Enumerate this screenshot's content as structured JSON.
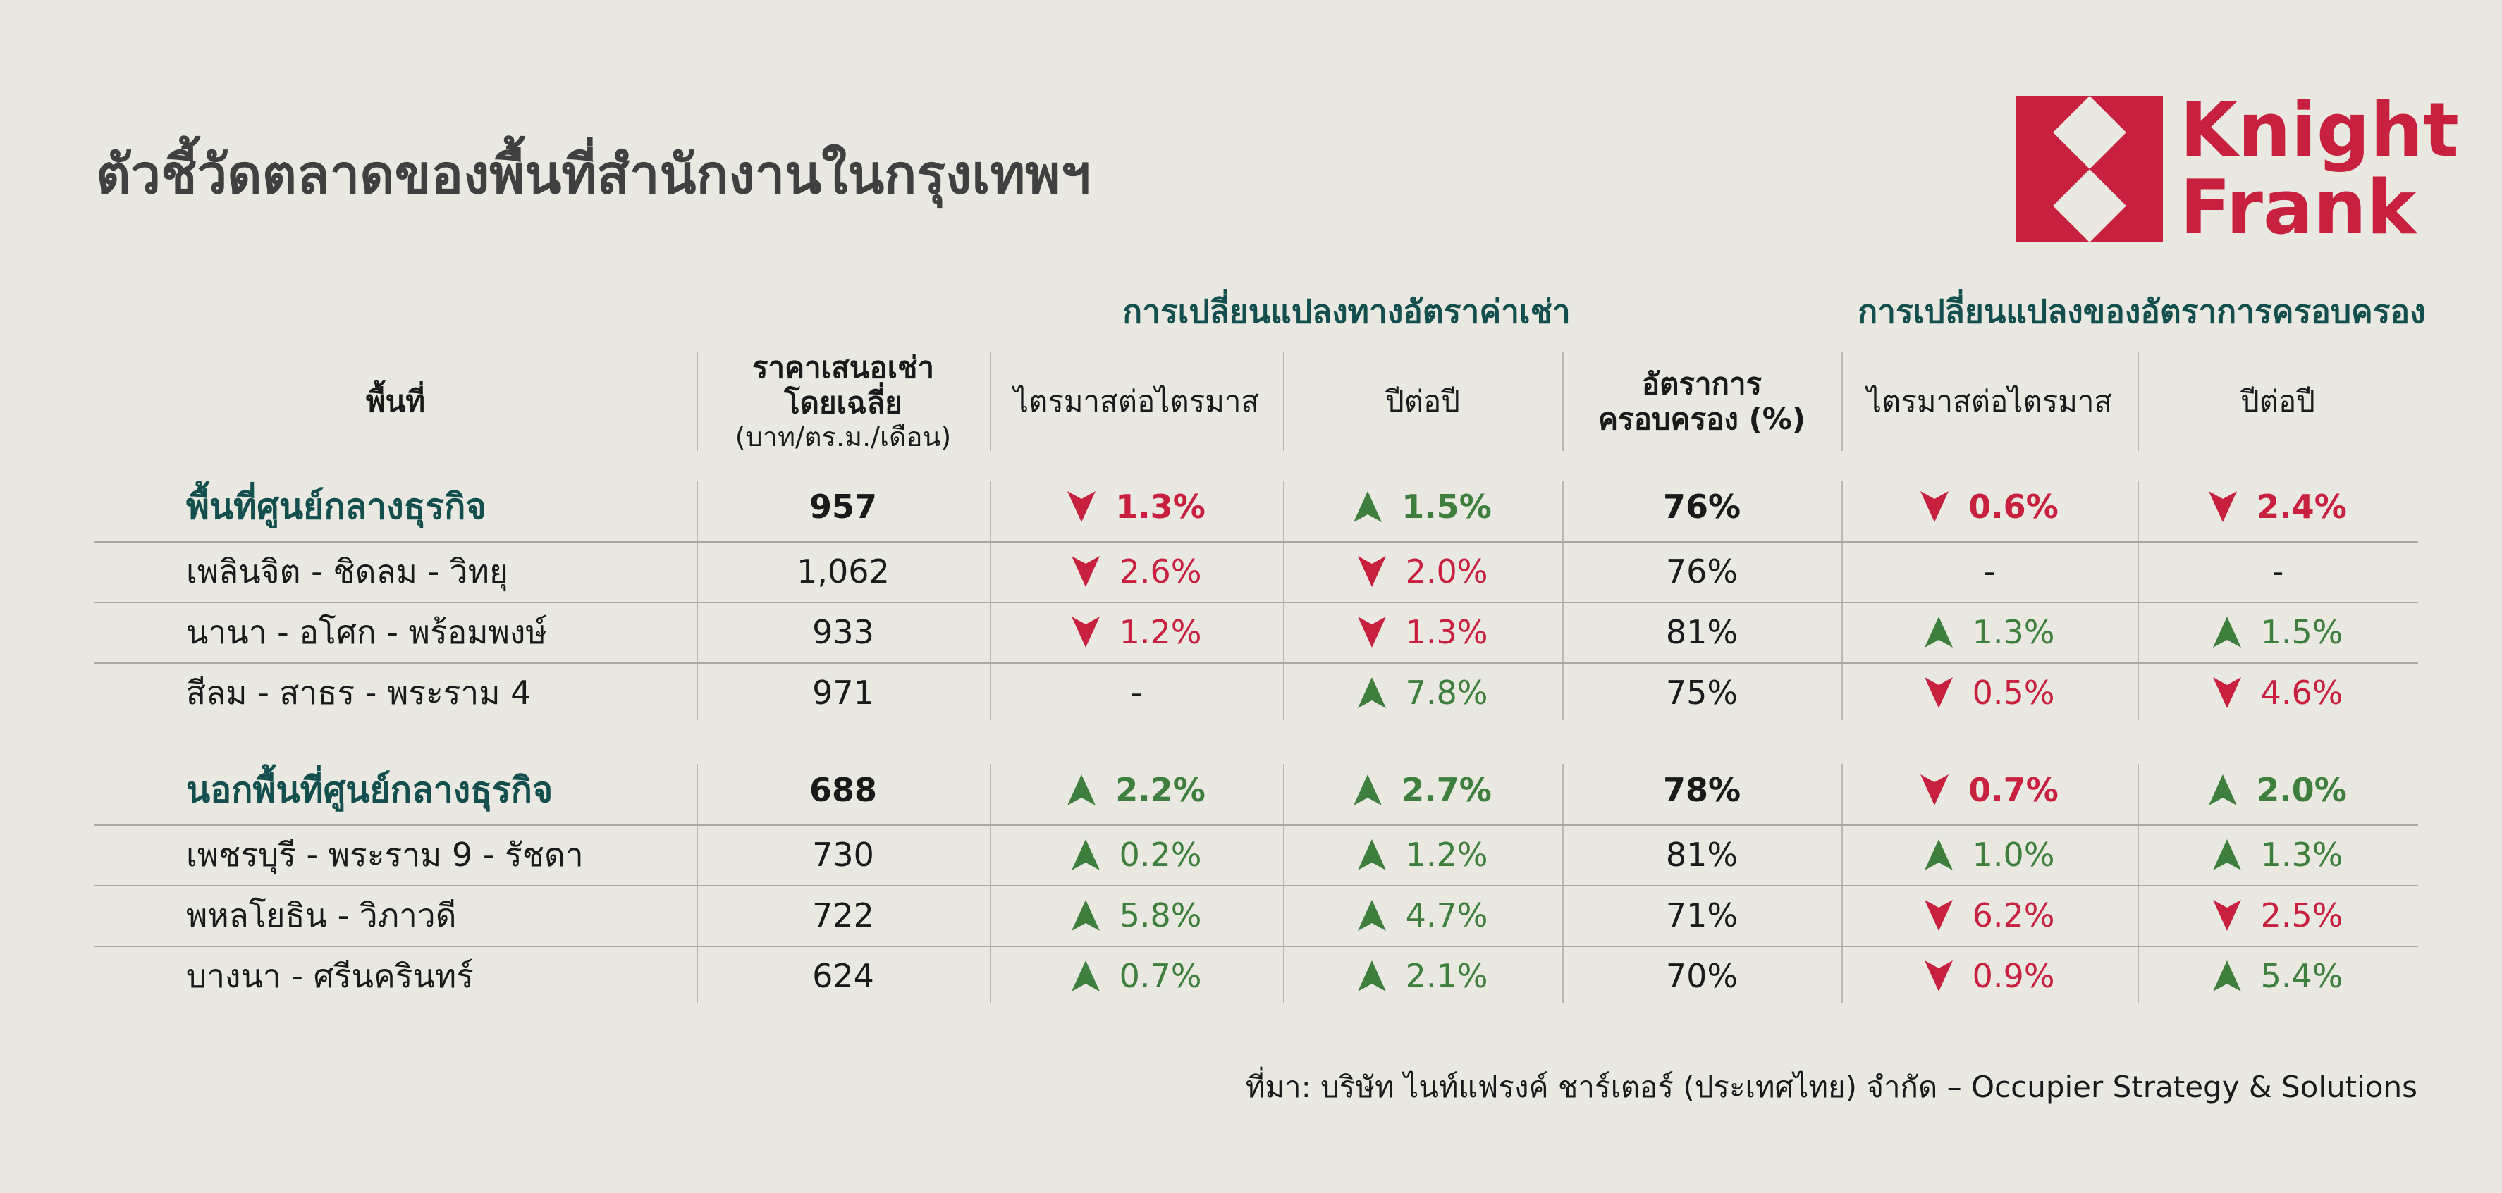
{
  "chart_data": {
    "type": "table",
    "title": "ตัวชี้วัดตลาดของพื้นที่สำนักงานในกรุงเทพฯ",
    "group_headers": {
      "rent_change": "การเปลี่ยนแปลงทางอัตราค่าเช่า",
      "occupancy_change": "การเปลี่ยนแปลงของอัตราการครอบครอง"
    },
    "columns": {
      "area": "พื้นที่",
      "rent_line1": "ราคาเสนอเช่า",
      "rent_line2": "โดยเฉลี่ย",
      "rent_unit": "(บาท/ตร.ม./เดือน)",
      "rent_qoq": "ไตรมาสต่อไตรมาส",
      "rent_yoy": "ปีต่อปี",
      "occ_line1": "อัตราการ",
      "occ_line2": "ครอบครอง (%)",
      "occ_qoq": "ไตรมาสต่อไตรมาส",
      "occ_yoy": "ปีต่อปี"
    },
    "rows": [
      {
        "name": "พื้นที่ศูนย์กลางธุรกิจ",
        "main": true,
        "rent": "957",
        "rent_qoq": {
          "dir": "down",
          "value": "1.3%"
        },
        "rent_yoy": {
          "dir": "up",
          "value": "1.5%"
        },
        "occupancy": "76%",
        "occ_qoq": {
          "dir": "down",
          "value": "0.6%"
        },
        "occ_yoy": {
          "dir": "down",
          "value": "2.4%"
        }
      },
      {
        "name": "เพลินจิต - ชิดลม - วิทยุ",
        "main": false,
        "rent": "1,062",
        "rent_qoq": {
          "dir": "down",
          "value": "2.6%"
        },
        "rent_yoy": {
          "dir": "down",
          "value": "2.0%"
        },
        "occupancy": "76%",
        "occ_qoq": {
          "dir": "none",
          "value": "-"
        },
        "occ_yoy": {
          "dir": "none",
          "value": "-"
        }
      },
      {
        "name": "นานา - อโศก - พร้อมพงษ์",
        "main": false,
        "rent": "933",
        "rent_qoq": {
          "dir": "down",
          "value": "1.2%"
        },
        "rent_yoy": {
          "dir": "down",
          "value": "1.3%"
        },
        "occupancy": "81%",
        "occ_qoq": {
          "dir": "up",
          "value": "1.3%"
        },
        "occ_yoy": {
          "dir": "up",
          "value": "1.5%"
        }
      },
      {
        "name": "สีลม - สาธร - พระราม 4",
        "main": false,
        "rent": "971",
        "rent_qoq": {
          "dir": "none",
          "value": "-"
        },
        "rent_yoy": {
          "dir": "up",
          "value": "7.8%"
        },
        "occupancy": "75%",
        "occ_qoq": {
          "dir": "down",
          "value": "0.5%"
        },
        "occ_yoy": {
          "dir": "down",
          "value": "4.6%"
        }
      },
      {
        "name": "นอกพื้นที่ศูนย์กลางธุรกิจ",
        "main": true,
        "rent": "688",
        "rent_qoq": {
          "dir": "up",
          "value": "2.2%"
        },
        "rent_yoy": {
          "dir": "up",
          "value": "2.7%"
        },
        "occupancy": "78%",
        "occ_qoq": {
          "dir": "down",
          "value": "0.7%"
        },
        "occ_yoy": {
          "dir": "up",
          "value": "2.0%"
        }
      },
      {
        "name": "เพชรบุรี - พระราม 9 - รัชดา",
        "main": false,
        "rent": "730",
        "rent_qoq": {
          "dir": "up",
          "value": "0.2%"
        },
        "rent_yoy": {
          "dir": "up",
          "value": "1.2%"
        },
        "occupancy": "81%",
        "occ_qoq": {
          "dir": "up",
          "value": "1.0%"
        },
        "occ_yoy": {
          "dir": "up",
          "value": "1.3%"
        }
      },
      {
        "name": "พหลโยธิน - วิภาวดี",
        "main": false,
        "rent": "722",
        "rent_qoq": {
          "dir": "up",
          "value": "5.8%"
        },
        "rent_yoy": {
          "dir": "up",
          "value": "4.7%"
        },
        "occupancy": "71%",
        "occ_qoq": {
          "dir": "down",
          "value": "6.2%"
        },
        "occ_yoy": {
          "dir": "down",
          "value": "2.5%"
        }
      },
      {
        "name": "บางนา - ศรีนครินทร์",
        "main": false,
        "rent": "624",
        "rent_qoq": {
          "dir": "up",
          "value": "0.7%"
        },
        "rent_yoy": {
          "dir": "up",
          "value": "2.1%"
        },
        "occupancy": "70%",
        "occ_qoq": {
          "dir": "down",
          "value": "0.9%"
        },
        "occ_yoy": {
          "dir": "up",
          "value": "5.4%"
        }
      }
    ],
    "source": "ที่มา: บริษัท ไนท์แฟรงค์ ชาร์เตอร์ (ประเทศไทย) จำกัด – Occupier Strategy & Solutions"
  },
  "logo": {
    "line1": "Knight",
    "line2": "Frank",
    "icon": "knight-frank-diamond-logo"
  },
  "colors": {
    "up": "#3e7f3e",
    "down": "#c8203f",
    "heading": "#134f4e",
    "background": "#e9e8e1"
  }
}
